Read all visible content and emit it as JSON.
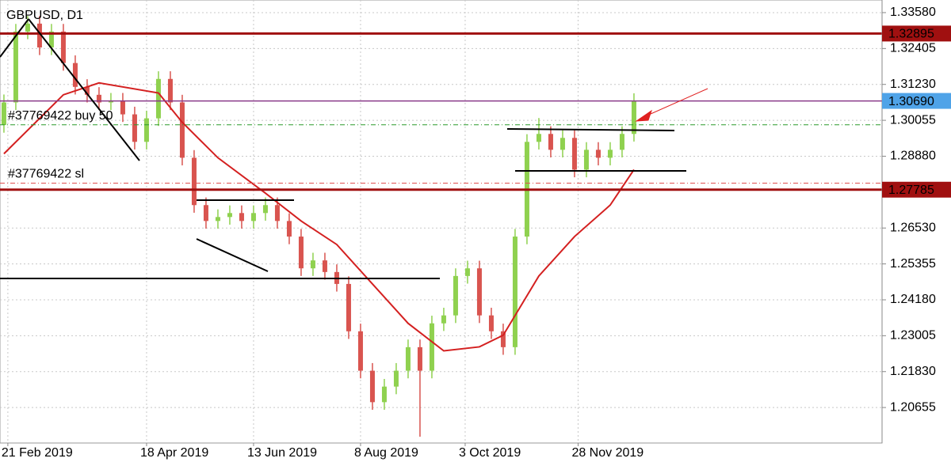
{
  "chart_data": {
    "type": "candlestick",
    "title": "GBPUSD, D1",
    "open": [
      1.299,
      1.3064,
      1.3296,
      1.3322,
      1.3244,
      1.3296,
      1.3193,
      1.3115,
      1.3089,
      1.3064,
      1.307,
      1.3025,
      1.2935,
      1.3012,
      1.3141,
      1.3064,
      1.2883,
      1.2728,
      1.2676,
      1.2689,
      1.2702,
      1.2676,
      1.2702,
      1.2728,
      1.2676,
      1.2625,
      1.2521,
      1.2547,
      1.2509,
      1.247,
      1.2315,
      1.2186,
      1.2083,
      1.2134,
      1.2186,
      1.2263,
      1.2186,
      1.2341,
      1.2367,
      1.2496,
      1.2521,
      1.2367,
      1.2315,
      1.2263,
      1.2625,
      1.2935,
      1.2961,
      1.2909,
      1.2948,
      1.2844,
      1.2909,
      1.2883,
      1.2909,
      1.2961
    ],
    "high": [
      1.309,
      1.3321,
      1.3347,
      1.3347,
      1.3321,
      1.3321,
      1.3218,
      1.314,
      1.3114,
      1.3095,
      1.3095,
      1.305,
      1.3037,
      1.3166,
      1.3166,
      1.3089,
      1.2908,
      1.2753,
      1.2714,
      1.2727,
      1.2727,
      1.2727,
      1.2753,
      1.2753,
      1.2701,
      1.265,
      1.2572,
      1.2572,
      1.2534,
      1.2495,
      1.234,
      1.2211,
      1.2159,
      1.2211,
      1.2288,
      1.2288,
      1.2366,
      1.2392,
      1.2521,
      1.2546,
      1.2546,
      1.2392,
      1.234,
      1.265,
      1.296,
      1.3013,
      1.2986,
      1.2973,
      1.2973,
      1.2934,
      1.2934,
      1.2934,
      1.2986,
      1.3094
    ],
    "low": [
      1.2965,
      1.3039,
      1.3271,
      1.3219,
      1.3219,
      1.3168,
      1.309,
      1.3064,
      1.3039,
      1.3039,
      1.3,
      1.291,
      1.291,
      1.2987,
      1.3039,
      1.2858,
      1.2703,
      1.2651,
      1.2651,
      1.2664,
      1.2651,
      1.2651,
      1.2677,
      1.2651,
      1.26,
      1.2496,
      1.2496,
      1.2484,
      1.2445,
      1.229,
      1.2161,
      1.2058,
      1.2058,
      1.2109,
      1.2161,
      1.197,
      1.2161,
      1.2316,
      1.2342,
      1.2471,
      1.2342,
      1.229,
      1.2238,
      1.2238,
      1.26,
      1.291,
      1.2884,
      1.2884,
      1.2819,
      1.2819,
      1.2858,
      1.2858,
      1.2884,
      1.2936
    ],
    "close": [
      1.3064,
      1.3296,
      1.3322,
      1.3244,
      1.3296,
      1.3193,
      1.3115,
      1.3089,
      1.3064,
      1.307,
      1.3025,
      1.2935,
      1.3012,
      1.3141,
      1.3064,
      1.2883,
      1.2728,
      1.2676,
      1.2689,
      1.2702,
      1.2676,
      1.2702,
      1.2728,
      1.2676,
      1.2625,
      1.2521,
      1.2547,
      1.2509,
      1.247,
      1.2315,
      1.2186,
      1.2083,
      1.2134,
      1.2186,
      1.2263,
      1.2186,
      1.2341,
      1.2367,
      1.2496,
      1.2521,
      1.2367,
      1.2315,
      1.2263,
      1.2625,
      1.2935,
      1.2961,
      1.2909,
      1.2948,
      1.2844,
      1.2909,
      1.2883,
      1.2909,
      1.2961,
      1.3069
    ],
    "up_color": "#8fd14f",
    "down_color": "#d9544f",
    "moving_average": {
      "color": "#d42020",
      "x": [
        0,
        5,
        8,
        13,
        15,
        18,
        22,
        25,
        28,
        31,
        34,
        37,
        40,
        42,
        45,
        48,
        51,
        53
      ],
      "values": [
        1.2896,
        1.3089,
        1.3128,
        1.3095,
        1.2999,
        1.2883,
        1.2767,
        1.2676,
        1.2599,
        1.247,
        1.2341,
        1.2251,
        1.2264,
        1.2302,
        1.2496,
        1.2625,
        1.2728,
        1.2844
      ]
    },
    "xlim": [
      -0.33,
      73.87
    ],
    "xticks": [
      {
        "value": 0.33,
        "label": "21 Feb 2019"
      },
      {
        "value": 12,
        "label": "18 Apr 2019"
      },
      {
        "value": 21,
        "label": "13 Jun 2019"
      },
      {
        "value": 30,
        "label": "8 Aug 2019"
      },
      {
        "value": 38.8,
        "label": "3 Oct 2019"
      },
      {
        "value": 48.3,
        "label": "28 Nov 2019"
      }
    ],
    "ylim": [
      1.19493,
      1.33993
    ],
    "yticks": [
      {
        "value": 1.3358,
        "label": "1.33580"
      },
      {
        "value": 1.32405,
        "label": "1.32405"
      },
      {
        "value": 1.3123,
        "label": "1.31230"
      },
      {
        "value": 1.30055,
        "label": "1.30055"
      },
      {
        "value": 1.2888,
        "label": "1.28880"
      },
      {
        "value": 1.2653,
        "label": "1.26530"
      },
      {
        "value": 1.25355,
        "label": "1.25355"
      },
      {
        "value": 1.2418,
        "label": "1.24180"
      },
      {
        "value": 1.23005,
        "label": "1.23005"
      },
      {
        "value": 1.2183,
        "label": "1.21830"
      },
      {
        "value": 1.20655,
        "label": "1.20655"
      }
    ],
    "grid": true,
    "levels": [
      {
        "value": 1.32895,
        "label": "1.32895",
        "color": "#a01010"
      },
      {
        "value": 1.3069,
        "label": "1.30690",
        "color": "#4fa3e8",
        "line_color": "#8a3a8a"
      },
      {
        "value": 1.27785,
        "label": "1.27785",
        "color": "#a01010"
      }
    ],
    "orders": [
      {
        "label": "#37769422 buy 50",
        "value": 1.2991,
        "color": "#2a9a2a"
      },
      {
        "label": "#37769422 sl",
        "value": 1.28,
        "color": "#e05050"
      }
    ]
  }
}
